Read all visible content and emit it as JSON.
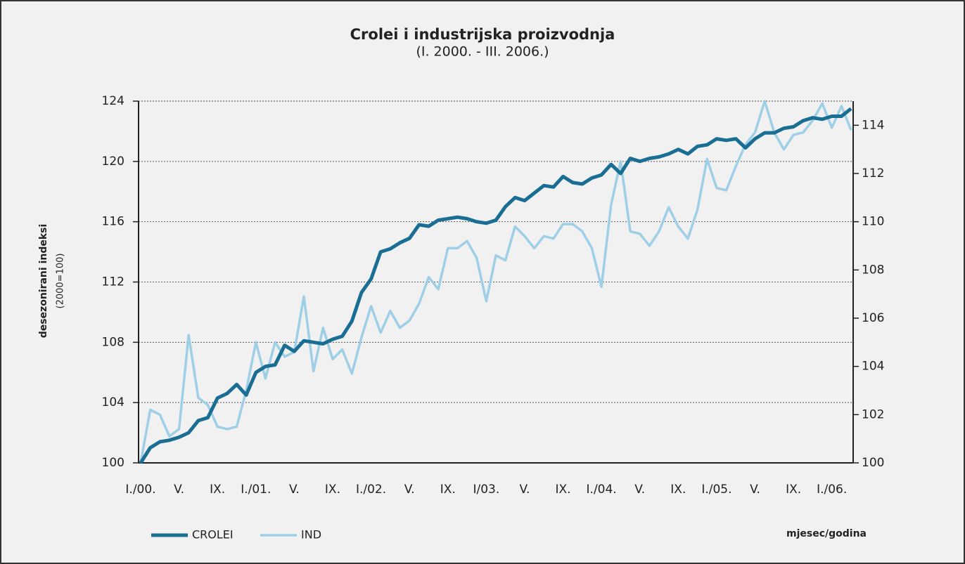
{
  "chart_data": {
    "type": "line",
    "title": "Crolei i industrijska proizvodnja",
    "subtitle": "(I. 2000. - III. 2006.)",
    "y_label": "desezonirani indeksi",
    "y_label_sub": "(2000=100)",
    "x_label": "mjesec/godina",
    "categories": [
      "I./00.",
      null,
      null,
      null,
      "V.",
      null,
      null,
      null,
      "IX.",
      null,
      null,
      null,
      "I./01.",
      null,
      null,
      null,
      "V.",
      null,
      null,
      null,
      "IX.",
      null,
      null,
      null,
      "I./02.",
      null,
      null,
      null,
      "V.",
      null,
      null,
      null,
      "IX.",
      null,
      null,
      null,
      "I/03.",
      null,
      null,
      null,
      "V.",
      null,
      null,
      null,
      "IX.",
      null,
      null,
      null,
      "I./04.",
      null,
      null,
      null,
      "V.",
      null,
      null,
      null,
      "IX.",
      null,
      null,
      null,
      "I./05.",
      null,
      null,
      null,
      "V.",
      null,
      null,
      null,
      "IX.",
      null,
      null,
      null,
      "I./06.",
      null,
      null
    ],
    "ylim": [
      100,
      124
    ],
    "yticks": [
      100,
      104,
      108,
      112,
      116,
      120,
      124
    ],
    "y2lim": [
      100,
      115
    ],
    "y2ticks": [
      100,
      102,
      104,
      106,
      108,
      110,
      112,
      114
    ],
    "grid": true,
    "legend": "bottom",
    "series": [
      {
        "name": "CROLEI",
        "color": "#1a6e93",
        "values": [
          100,
          101.0,
          101.4,
          101.5,
          101.7,
          102.0,
          102.8,
          103.0,
          104.3,
          104.6,
          105.2,
          104.5,
          106.0,
          106.4,
          106.5,
          107.8,
          107.4,
          108.1,
          108.0,
          107.9,
          108.2,
          108.4,
          109.4,
          111.3,
          112.2,
          114.0,
          114.2,
          114.6,
          114.9,
          115.8,
          115.7,
          116.1,
          116.2,
          116.3,
          116.2,
          116.0,
          115.9,
          116.1,
          117.0,
          117.6,
          117.4,
          117.9,
          118.4,
          118.3,
          119.0,
          118.6,
          118.5,
          118.9,
          119.1,
          119.8,
          119.2,
          120.2,
          120.0,
          120.2,
          120.3,
          120.5,
          120.8,
          120.5,
          121.0,
          121.1,
          121.5,
          121.4,
          121.5,
          120.9,
          121.5,
          121.9,
          121.9,
          122.2,
          122.3,
          122.7,
          122.9,
          122.8,
          123.0,
          123.0,
          123.5
        ]
      },
      {
        "name": "IND",
        "color": "#9fcfe6",
        "axis": "y2",
        "values": [
          100,
          102.2,
          102.0,
          101.1,
          101.4,
          105.3,
          102.7,
          102.4,
          101.5,
          101.4,
          101.5,
          103.0,
          105.0,
          103.5,
          105.0,
          104.4,
          104.6,
          106.9,
          103.8,
          105.6,
          104.3,
          104.7,
          103.7,
          105.2,
          106.5,
          105.4,
          106.3,
          105.6,
          105.9,
          106.6,
          107.7,
          107.2,
          108.9,
          108.9,
          109.2,
          108.5,
          106.7,
          108.6,
          108.4,
          109.8,
          109.4,
          108.9,
          109.4,
          109.3,
          109.9,
          109.9,
          109.6,
          108.9,
          107.3,
          110.7,
          112.5,
          109.6,
          109.5,
          109.0,
          109.6,
          110.6,
          109.8,
          109.3,
          110.5,
          112.6,
          111.4,
          111.3,
          112.3,
          113.2,
          113.7,
          115.0,
          113.7,
          113.0,
          113.6,
          113.7,
          114.2,
          114.9,
          113.9,
          114.8,
          113.8
        ]
      }
    ]
  }
}
